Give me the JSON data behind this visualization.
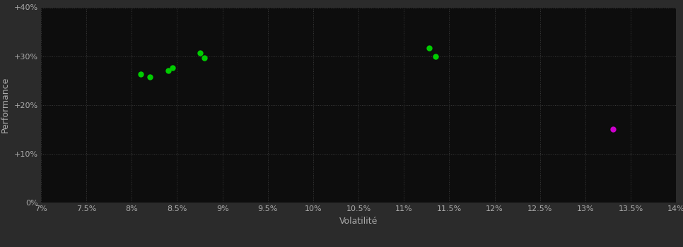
{
  "background_color": "#2b2b2b",
  "plot_bg_color": "#0d0d0d",
  "grid_color": "#3a3a3a",
  "text_color": "#aaaaaa",
  "xlabel": "Volatilité",
  "ylabel": "Performance",
  "xlim": [
    0.07,
    0.14
  ],
  "ylim": [
    0.0,
    0.4
  ],
  "xticks": [
    0.07,
    0.075,
    0.08,
    0.085,
    0.09,
    0.095,
    0.1,
    0.105,
    0.11,
    0.115,
    0.12,
    0.125,
    0.13,
    0.135,
    0.14
  ],
  "yticks": [
    0.0,
    0.1,
    0.2,
    0.3,
    0.4
  ],
  "green_points": [
    [
      0.081,
      0.263
    ],
    [
      0.082,
      0.257
    ],
    [
      0.084,
      0.271
    ],
    [
      0.0845,
      0.276
    ],
    [
      0.0875,
      0.306
    ],
    [
      0.088,
      0.296
    ],
    [
      0.1128,
      0.317
    ],
    [
      0.1135,
      0.3
    ]
  ],
  "magenta_points": [
    [
      0.133,
      0.15
    ]
  ],
  "green_color": "#00cc00",
  "magenta_color": "#cc00cc",
  "marker_size": 6
}
